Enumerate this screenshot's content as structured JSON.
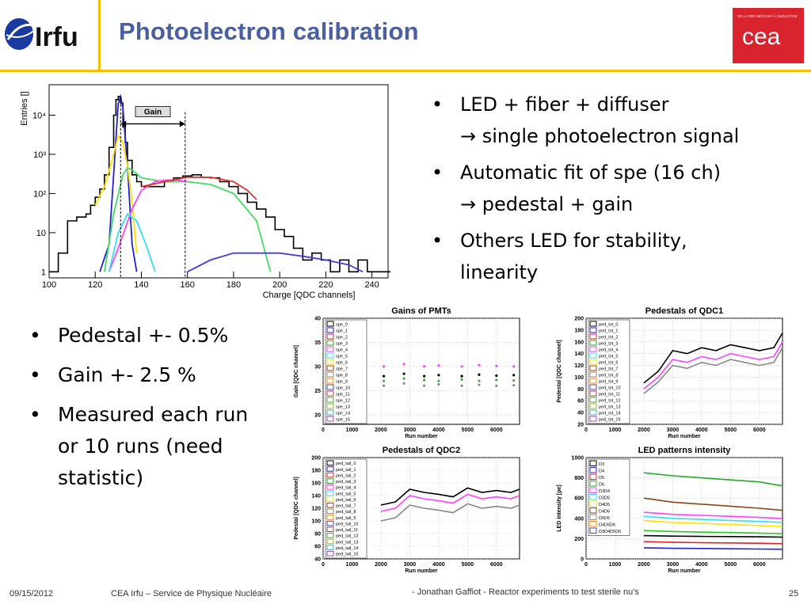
{
  "header": {
    "title": "Photoelectron calibration",
    "irfu_logo_text": "Irfu",
    "cea_logo_text": "cea",
    "cea_tagline": "DE LA RECHERCHE À L'INDUSTRIE"
  },
  "bullets_right": [
    {
      "line1": "LED + fiber + diffuser",
      "line2": "single photoelectron signal"
    },
    {
      "line1": "Automatic fit of spe (16 ch)",
      "line2": "pedestal + gain"
    },
    {
      "line1": "Others LED for stability,",
      "line2": "linearity"
    }
  ],
  "arrow_glyph": "→",
  "bullets_left": [
    {
      "text": "Pedestal +- 0.5%"
    },
    {
      "text": "Gain +- 2.5 %"
    },
    {
      "line1": "Measured each run",
      "line2": "or 10 runs (need",
      "line3": "statistic)"
    }
  ],
  "footer": {
    "date": "09/15/2012",
    "org": "CEA Irfu – Service de Physique Nucléaire",
    "talk": "- Jonathan Gaffiot - Reactor experiments to test sterile nu's",
    "page": "25"
  },
  "chart_data": [
    {
      "type": "line",
      "title": "",
      "xlabel": "Charge [QDC channels]",
      "ylabel": "Entries []",
      "x_ticks": [
        "100",
        "120",
        "140",
        "160",
        "180",
        "200",
        "220",
        "240"
      ],
      "y_ticks": [
        "1",
        "10",
        "10²",
        "10³",
        "10⁴"
      ],
      "log_y": true,
      "xlim": [
        100,
        247
      ],
      "annotation": "Gain",
      "series": [
        {
          "color": "#000000",
          "x": [
            100,
            104,
            108,
            112,
            116,
            118,
            120,
            122,
            124,
            126,
            128,
            129,
            130,
            131,
            132,
            133,
            134,
            136,
            138,
            140,
            142,
            146,
            150,
            154,
            158,
            162,
            166,
            170,
            174,
            178,
            182,
            186,
            190,
            194,
            198,
            202,
            206,
            210,
            214,
            218,
            222,
            226,
            230,
            234,
            238,
            242,
            246
          ],
          "y": [
            1,
            3,
            20,
            25,
            30,
            50,
            80,
            130,
            300,
            1500,
            10000,
            25000,
            30000,
            20000,
            5000,
            2000,
            700,
            300,
            200,
            150,
            150,
            150,
            200,
            250,
            280,
            300,
            260,
            250,
            200,
            150,
            100,
            60,
            40,
            25,
            12,
            8,
            4,
            2,
            3,
            2,
            1,
            2,
            1,
            2,
            1,
            1,
            1
          ]
        },
        {
          "color": "#2222cc",
          "x": [
            122,
            126,
            128,
            130,
            131,
            132,
            134,
            136,
            138
          ],
          "y": [
            1,
            5,
            300,
            20000,
            30000,
            15000,
            500,
            5,
            1
          ]
        },
        {
          "color": "#ffe000",
          "x": [
            120,
            124,
            128,
            130,
            132,
            134,
            136,
            138
          ],
          "y": [
            50,
            150,
            1000,
            3000,
            2000,
            500,
            60,
            3
          ]
        },
        {
          "color": "#40dd60",
          "x": [
            124,
            128,
            132,
            134,
            136,
            140,
            150,
            160,
            170,
            180,
            190,
            196
          ],
          "y": [
            1,
            30,
            300,
            450,
            400,
            250,
            200,
            200,
            170,
            100,
            20,
            1
          ]
        },
        {
          "color": "#ff40ff",
          "x": [
            126,
            130,
            136,
            140,
            146,
            150,
            156,
            160
          ],
          "y": [
            1,
            4,
            40,
            120,
            200,
            220,
            220,
            200
          ]
        },
        {
          "color": "#30e0f0",
          "x": [
            126,
            130,
            134,
            138,
            142,
            146
          ],
          "y": [
            1,
            10,
            30,
            20,
            5,
            1
          ]
        },
        {
          "color": "#e03030",
          "x": [
            140,
            150,
            160,
            170,
            180,
            186,
            190
          ],
          "y": [
            150,
            200,
            260,
            260,
            200,
            120,
            70
          ]
        },
        {
          "color": "#4040dd",
          "x": [
            160,
            170,
            180,
            190,
            200,
            210,
            220,
            230,
            236
          ],
          "y": [
            1,
            2,
            3,
            3,
            3,
            2.5,
            2,
            1.5,
            1
          ]
        }
      ]
    },
    {
      "type": "scatter",
      "title": "Gains of PMTs",
      "xlabel": "Run number",
      "ylabel": "Gain [QDC channel]",
      "x_ticks": [
        "0",
        "1000",
        "2000",
        "3000",
        "4000",
        "5000",
        "6000"
      ],
      "y_ticks": [
        "20",
        "25",
        "30",
        "35",
        "40"
      ],
      "xlim": [
        0,
        6800
      ],
      "ylim": [
        18,
        40
      ],
      "legend": [
        "spe_0",
        "spe_1",
        "spe_2",
        "spe_3",
        "spe_4",
        "spe_5",
        "spe_6",
        "spe_7",
        "spe_8",
        "spe_9",
        "spe_10",
        "spe_11",
        "spe_12",
        "spe_13",
        "spe_14",
        "spe_15"
      ],
      "series": [
        {
          "name": "spe_0",
          "x": [
            2100,
            2800,
            3500,
            4000,
            4800,
            5400,
            6000,
            6600
          ],
          "y": [
            28,
            28.5,
            28,
            28.2,
            28,
            28.3,
            28.1,
            28.2
          ]
        },
        {
          "name": "spe_4",
          "x": [
            2100,
            2800,
            3500,
            4000,
            4800,
            5400,
            6000,
            6600
          ],
          "y": [
            30,
            30.5,
            30,
            30.2,
            30,
            30.3,
            30.1,
            30
          ]
        },
        {
          "name": "spe_8",
          "x": [
            2100,
            2800,
            3500,
            4000,
            4800,
            5400,
            6000,
            6600
          ],
          "y": [
            26,
            26.5,
            26,
            26.3,
            26,
            26.2,
            26,
            26.1
          ]
        },
        {
          "name": "spe_12",
          "x": [
            2100,
            2800,
            3500,
            4000,
            4800,
            5400,
            6000,
            6600
          ],
          "y": [
            27,
            27.5,
            27.2,
            27,
            27.3,
            27,
            27.2,
            27.1
          ]
        }
      ]
    },
    {
      "type": "line",
      "title": "Pedestals of QDC1",
      "xlabel": "Run number",
      "ylabel": "Pedestal [QDC channel]",
      "x_ticks": [
        "0",
        "1000",
        "2000",
        "3000",
        "4000",
        "5000",
        "6000"
      ],
      "y_ticks": [
        "20",
        "40",
        "60",
        "80",
        "100",
        "120",
        "140",
        "160",
        "180",
        "200"
      ],
      "xlim": [
        0,
        6800
      ],
      "ylim": [
        20,
        200
      ],
      "legend": [
        "ped_tot_0",
        "ped_tot_1",
        "ped_tot_2",
        "ped_tot_3",
        "ped_tot_4",
        "ped_tot_5",
        "ped_tot_6",
        "ped_tot_7",
        "ped_tot_8",
        "ped_tot_9",
        "ped_tot_10",
        "ped_tot_11",
        "ped_tot_12",
        "ped_tot_13",
        "ped_tot_14",
        "ped_tot_15"
      ],
      "series": [
        {
          "name": "ped_tot_0",
          "x": [
            2000,
            2500,
            3000,
            3500,
            4000,
            4500,
            5000,
            5500,
            6000,
            6500,
            6800
          ],
          "y": [
            90,
            110,
            145,
            140,
            150,
            145,
            155,
            150,
            145,
            150,
            175
          ]
        },
        {
          "name": "ped_tot_5",
          "x": [
            2000,
            2500,
            3000,
            3500,
            4000,
            4500,
            5000,
            5500,
            6000,
            6500,
            6800
          ],
          "y": [
            80,
            100,
            130,
            125,
            135,
            130,
            140,
            135,
            130,
            135,
            160
          ]
        },
        {
          "name": "ped_tot_10",
          "x": [
            2000,
            2500,
            3000,
            3500,
            4000,
            4500,
            5000,
            5500,
            6000,
            6500,
            6800
          ],
          "y": [
            72,
            92,
            120,
            115,
            125,
            120,
            130,
            125,
            120,
            125,
            150
          ]
        }
      ]
    },
    {
      "type": "line",
      "title": "Pedestals of QDC2",
      "xlabel": "Run number",
      "ylabel": "Pedestal [QDC channel]",
      "x_ticks": [
        "0",
        "1000",
        "2000",
        "3000",
        "4000",
        "5000",
        "6000"
      ],
      "y_ticks": [
        "40",
        "60",
        "80",
        "100",
        "120",
        "140",
        "160",
        "180",
        "200"
      ],
      "xlim": [
        0,
        6800
      ],
      "ylim": [
        40,
        200
      ],
      "legend": [
        "ped_tail_0",
        "ped_tail_1",
        "ped_tail_2",
        "ped_tail_3",
        "ped_tail_4",
        "ped_tail_5",
        "ped_tail_6",
        "ped_tail_7",
        "ped_tail_8",
        "ped_tail_9",
        "ped_tail_10",
        "ped_tail_11",
        "ped_tail_12",
        "ped_tail_13",
        "ped_tail_14",
        "ped_tail_15"
      ],
      "series": [
        {
          "name": "ped_tail_0",
          "x": [
            2000,
            2500,
            3000,
            3500,
            4000,
            4500,
            5000,
            5500,
            6000,
            6500,
            6800
          ],
          "y": [
            125,
            130,
            150,
            145,
            142,
            138,
            152,
            145,
            148,
            145,
            150
          ]
        },
        {
          "name": "ped_tail_5",
          "x": [
            2000,
            2500,
            3000,
            3500,
            4000,
            4500,
            5000,
            5500,
            6000,
            6500,
            6800
          ],
          "y": [
            115,
            120,
            140,
            135,
            132,
            128,
            142,
            135,
            138,
            135,
            140
          ]
        },
        {
          "name": "ped_tail_10",
          "x": [
            2000,
            2500,
            3000,
            3500,
            4000,
            4500,
            5000,
            5500,
            6000,
            6500,
            6800
          ],
          "y": [
            100,
            105,
            125,
            120,
            117,
            113,
            127,
            120,
            123,
            120,
            125
          ]
        }
      ]
    },
    {
      "type": "line",
      "title": "LED patterns intensity",
      "xlabel": "Run number",
      "ylabel": "LED intensity [pe]",
      "x_ticks": [
        "0",
        "1000",
        "2000",
        "3000",
        "4000",
        "5000",
        "6000"
      ],
      "y_ticks": [
        "0",
        "200",
        "400",
        "600",
        "800",
        "1000"
      ],
      "xlim": [
        0,
        6800
      ],
      "ylim": [
        0,
        1000
      ],
      "legend": [
        "D3",
        "D4",
        "D5",
        "D6",
        "D3D4",
        "D3D5",
        "D4D5",
        "D4D6",
        "D5D6",
        "D4D5D6",
        "D3D4D5D6"
      ],
      "series": [
        {
          "name": "D3D4D5D6",
          "color": "#22aa22",
          "x": [
            2000,
            3000,
            4000,
            5000,
            6000,
            6800
          ],
          "y": [
            850,
            820,
            800,
            780,
            760,
            720
          ]
        },
        {
          "name": "D4D5D6",
          "color": "#8b4513",
          "x": [
            2000,
            3000,
            4000,
            5000,
            6000,
            6800
          ],
          "y": [
            600,
            560,
            540,
            520,
            500,
            480
          ]
        },
        {
          "name": "D3D5",
          "color": "#ff40ff",
          "x": [
            2000,
            3000,
            4000,
            5000,
            6000,
            6800
          ],
          "y": [
            460,
            440,
            430,
            420,
            410,
            400
          ]
        },
        {
          "name": "D3D4",
          "color": "#30e0f0",
          "x": [
            2000,
            3000,
            4000,
            5000,
            6000,
            6800
          ],
          "y": [
            420,
            400,
            390,
            380,
            370,
            360
          ]
        },
        {
          "name": "D4D5",
          "color": "#ffe000",
          "x": [
            2000,
            3000,
            4000,
            5000,
            6000,
            6800
          ],
          "y": [
            380,
            360,
            350,
            340,
            330,
            320
          ]
        },
        {
          "name": "D6",
          "color": "#22cc22",
          "x": [
            2000,
            3000,
            4000,
            5000,
            6000,
            6800
          ],
          "y": [
            280,
            270,
            265,
            260,
            255,
            250
          ]
        },
        {
          "name": "D3",
          "color": "#000000",
          "x": [
            2000,
            3000,
            4000,
            5000,
            6000,
            6800
          ],
          "y": [
            230,
            225,
            222,
            220,
            218,
            215
          ]
        },
        {
          "name": "D5",
          "color": "#dd2222",
          "x": [
            2000,
            3000,
            4000,
            5000,
            6000,
            6800
          ],
          "y": [
            170,
            165,
            160,
            158,
            155,
            150
          ]
        },
        {
          "name": "D4",
          "color": "#2222dd",
          "x": [
            2000,
            3000,
            4000,
            5000,
            6000,
            6800
          ],
          "y": [
            110,
            105,
            103,
            100,
            98,
            95
          ]
        }
      ]
    }
  ]
}
